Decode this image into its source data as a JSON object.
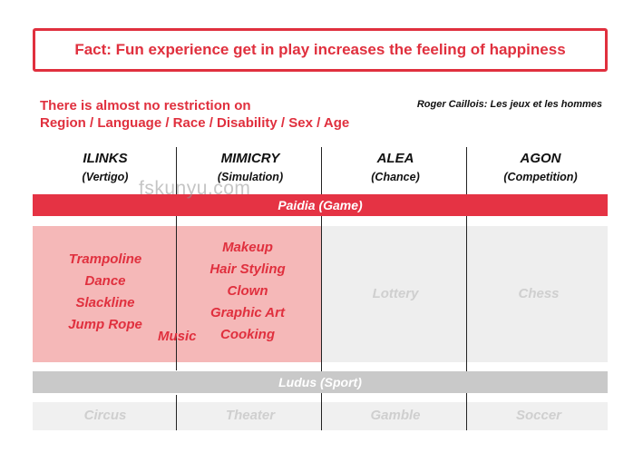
{
  "fact": "Fact: Fun experience get in play increases the feeling of happiness",
  "restriction": {
    "line1": "There is almost no restriction on",
    "line2": "Region / Language / Race / Disability / Sex / Age"
  },
  "citation": "Roger Caillois: Les jeux et les hommes",
  "columns": [
    {
      "name": "ILINKS",
      "sub": "(Vertigo)"
    },
    {
      "name": "MIMICRY",
      "sub": "(Simulation)"
    },
    {
      "name": "ALEA",
      "sub": "(Chance)"
    },
    {
      "name": "AGON",
      "sub": "(Competition)"
    }
  ],
  "bands": {
    "paidia": "Paidia (Game)",
    "ludus": "Ludus (Sport)"
  },
  "paidia_items": {
    "ilinks": [
      "Trampoline",
      "Dance",
      "Slackline",
      "Jump Rope"
    ],
    "mimicry": [
      "Makeup",
      "Hair Styling",
      "Clown",
      "Graphic Art",
      "Cooking"
    ],
    "shared": "Music",
    "alea": "Lottery",
    "agon": "Chess"
  },
  "ludus_items": [
    "Circus",
    "Theater",
    "Gamble",
    "Soccer"
  ],
  "watermark": "fskunyu.com",
  "colors": {
    "accent_red": "#e0303e",
    "paidia_band": "#e53344",
    "pink_area": "#f5b8b8",
    "grey_area": "#eeeeee",
    "ludus_band": "#c9c9c9"
  }
}
